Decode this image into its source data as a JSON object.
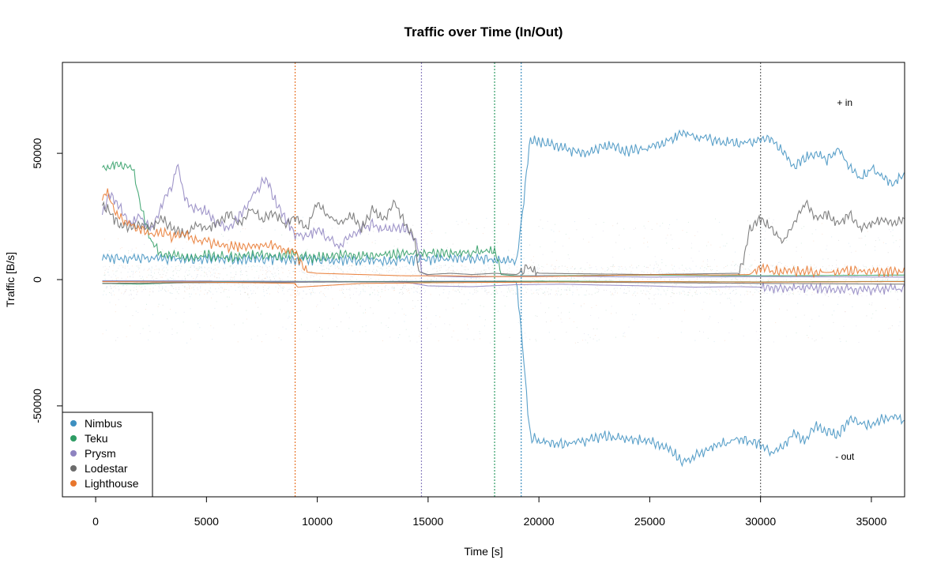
{
  "chart_data": {
    "type": "line",
    "title": "Traffic over Time (In/Out)",
    "xlabel": "Time [s]",
    "ylabel": "Traffic [B/s]",
    "xlim": [
      -1500,
      36500
    ],
    "ylim": [
      -86000,
      86000
    ],
    "xticks": [
      0,
      5000,
      10000,
      15000,
      20000,
      25000,
      30000,
      35000
    ],
    "yticks": [
      -50000,
      0,
      50000
    ],
    "grid": false,
    "legend_position": "bottom-left",
    "annotations": [
      {
        "text": "+ in",
        "x": 33800,
        "y": 70000
      },
      {
        "text": "- out",
        "x": 33800,
        "y": -70000
      }
    ],
    "vlines": [
      {
        "x": 9000,
        "color": "#E8762C"
      },
      {
        "x": 14700,
        "color": "#8E83C0"
      },
      {
        "x": 18000,
        "color": "#2E9C64"
      },
      {
        "x": 19200,
        "color": "#3D8FC0"
      },
      {
        "x": 30000,
        "color": "#6B6B6B"
      }
    ],
    "series": [
      {
        "name": "Nimbus",
        "color": "#3D8FC0",
        "in_x": [
          300,
          1500,
          3000,
          5000,
          7000,
          9000,
          11000,
          13000,
          15000,
          17000,
          18500,
          19000,
          19300,
          19600,
          20000,
          21000,
          22000,
          23000,
          24000,
          25000,
          26000,
          26500,
          27000,
          28000,
          29000,
          30000,
          30500,
          31000,
          31500,
          32000,
          32500,
          33000,
          33500,
          34000,
          34500,
          35000,
          35500,
          36000,
          36500
        ],
        "in_y": [
          8500,
          8600,
          8200,
          8000,
          8300,
          8000,
          7800,
          7600,
          8000,
          8200,
          7600,
          7500,
          30000,
          55000,
          55000,
          52000,
          50000,
          53000,
          51000,
          52000,
          56000,
          58000,
          57000,
          55000,
          54000,
          55000,
          56000,
          50000,
          45000,
          48000,
          50000,
          47000,
          52000,
          45000,
          40000,
          44000,
          41000,
          38000,
          42000
        ],
        "out_x": [
          300,
          5000,
          10000,
          15000,
          18500,
          19000,
          19300,
          19600,
          20000,
          21000,
          22000,
          23000,
          24000,
          25000,
          26000,
          26500,
          27000,
          28000,
          29000,
          30000,
          30500,
          31000,
          31500,
          32000,
          32500,
          33000,
          33500,
          34000,
          34500,
          35000,
          35500,
          36000,
          36500
        ],
        "out_y": [
          -500,
          -600,
          -800,
          -700,
          -600,
          -800,
          -30000,
          -62000,
          -64000,
          -65000,
          -64000,
          -62000,
          -63000,
          -64000,
          -68000,
          -72000,
          -70000,
          -66000,
          -63000,
          -65000,
          -69000,
          -66000,
          -61000,
          -64000,
          -58000,
          -60000,
          -62000,
          -55000,
          -57000,
          -58000,
          -55000,
          -54000,
          -56000
        ]
      },
      {
        "name": "Teku",
        "color": "#2E9C64",
        "in_x": [
          300,
          1000,
          1700,
          2000,
          2500,
          3000,
          4000,
          5000,
          6000,
          7000,
          8000,
          9000,
          10000,
          11000,
          12000,
          13000,
          14000,
          15000,
          16000,
          17000,
          18000,
          18300,
          19000,
          20000,
          25000,
          30000,
          36500
        ],
        "in_y": [
          44000,
          46000,
          44000,
          30000,
          15000,
          10000,
          9000,
          9500,
          9000,
          10000,
          9500,
          10000,
          8500,
          10000,
          9500,
          10000,
          10000,
          11000,
          10000,
          11000,
          12000,
          2000,
          1500,
          1500,
          1800,
          1500,
          1800
        ],
        "out_x": [
          300,
          2000,
          5000,
          10000,
          15000,
          20000,
          25000,
          30000,
          36500
        ],
        "out_y": [
          -1500,
          -1800,
          -800,
          -700,
          -900,
          -600,
          -800,
          -900,
          -700
        ]
      },
      {
        "name": "Prysm",
        "color": "#8E83C0",
        "in_x": [
          300,
          600,
          1000,
          1500,
          2000,
          2500,
          3000,
          3500,
          3700,
          4000,
          4500,
          5000,
          5500,
          6000,
          6500,
          7000,
          7500,
          7700,
          8000,
          8500,
          9000,
          9500,
          10000,
          10500,
          11000,
          11500,
          12000,
          12500,
          13000,
          13500,
          14000,
          14500,
          14700,
          15000,
          16000,
          17000,
          18000,
          20000,
          25000,
          30000,
          36500
        ],
        "in_y": [
          25000,
          35000,
          30000,
          22000,
          25000,
          20000,
          30000,
          38000,
          46000,
          32000,
          28000,
          27000,
          22000,
          20000,
          25000,
          32000,
          38000,
          40000,
          33000,
          25000,
          18000,
          17000,
          20000,
          16000,
          13000,
          17000,
          20000,
          22000,
          20000,
          21000,
          20000,
          15000,
          3000,
          1500,
          1200,
          1000,
          1200,
          1500,
          1000,
          1200,
          1000
        ],
        "out_x": [
          300,
          5000,
          10000,
          14000,
          15000,
          17000,
          19000,
          21000,
          23000,
          25000,
          27000,
          29000,
          30000,
          32000,
          34000,
          36500
        ],
        "out_y": [
          -500,
          -600,
          -800,
          -1000,
          -2500,
          -2800,
          -2000,
          -1800,
          -2200,
          -2500,
          -3000,
          -2800,
          -3000,
          -3500,
          -4000,
          -3800
        ]
      },
      {
        "name": "Lodestar",
        "color": "#6B6B6B",
        "in_x": [
          300,
          700,
          1000,
          1500,
          2000,
          2500,
          3000,
          3500,
          4000,
          4500,
          5000,
          5500,
          6000,
          6500,
          7000,
          7500,
          8000,
          8500,
          9000,
          9500,
          10000,
          10500,
          11000,
          11500,
          12000,
          12500,
          13000,
          13500,
          14000,
          14400,
          14600,
          15000,
          16000,
          17000,
          18000,
          19000,
          19500,
          20000,
          25000,
          29000,
          29300,
          29500,
          30000,
          30500,
          31000,
          31500,
          32000,
          32500,
          33000,
          33500,
          34000,
          34500,
          35000,
          35500,
          36000,
          36500
        ],
        "in_y": [
          30000,
          26000,
          22000,
          20000,
          22000,
          21000,
          24000,
          20000,
          18000,
          22000,
          20000,
          23000,
          26000,
          22000,
          28000,
          24000,
          27000,
          22000,
          25000,
          20000,
          30000,
          25000,
          22000,
          26000,
          20000,
          28000,
          24000,
          30000,
          22000,
          15000,
          3000,
          2000,
          2500,
          2000,
          2500,
          2000,
          5000,
          2500,
          2000,
          2500,
          10000,
          20000,
          24000,
          20000,
          15000,
          22000,
          30000,
          25000,
          26000,
          22000,
          26000,
          20000,
          22000,
          24000,
          22000,
          24000
        ],
        "out_x": [
          300,
          5000,
          10000,
          15000,
          20000,
          25000,
          30000,
          36500
        ],
        "out_y": [
          -1500,
          -1200,
          -1000,
          -800,
          -900,
          -1200,
          -1500,
          -1800
        ]
      },
      {
        "name": "Lighthouse",
        "color": "#E8762C",
        "in_x": [
          300,
          500,
          800,
          1000,
          1500,
          2000,
          2500,
          3000,
          3500,
          4000,
          4500,
          5000,
          6000,
          7000,
          8000,
          8500,
          9000,
          9500,
          10000,
          12000,
          14000,
          16000,
          18000,
          20000,
          22000,
          24000,
          26000,
          28000,
          29500,
          30000,
          30500,
          31000,
          32000,
          33000,
          34000,
          35000,
          36500
        ],
        "in_y": [
          32000,
          35000,
          28000,
          25000,
          22000,
          20000,
          18000,
          19000,
          17000,
          18000,
          16000,
          15000,
          13000,
          13000,
          14000,
          12000,
          11000,
          3000,
          2500,
          2000,
          1500,
          1500,
          1200,
          1200,
          1500,
          1800,
          2000,
          1800,
          2000,
          5000,
          3500,
          3000,
          3500,
          2800,
          3500,
          3200,
          3500
        ],
        "out_x": [
          300,
          5000,
          9000,
          9100,
          12000,
          16000,
          20000,
          25000,
          30000,
          36500
        ],
        "out_y": [
          -800,
          -1000,
          -1500,
          -3000,
          -1500,
          -1200,
          -1000,
          -800,
          -1000,
          -800
        ]
      }
    ]
  }
}
